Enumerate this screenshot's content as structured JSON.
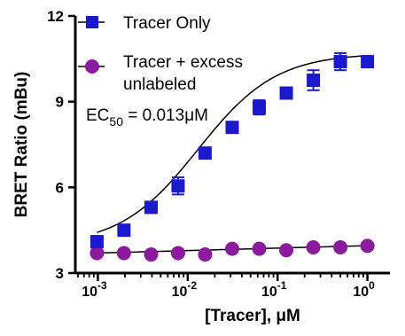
{
  "chart_data": {
    "type": "scatter",
    "ylabel": "BRET Ratio (mBu)",
    "xlabel_prefix": "[Tracer], ",
    "xlabel_unit": "μM",
    "x_scale": "log",
    "xlim": [
      0.000561,
      1.78
    ],
    "ylim": [
      3,
      12
    ],
    "y_ticks": [
      3,
      6,
      9,
      12
    ],
    "x_ticks": [
      {
        "value": 0.001,
        "base": "10",
        "exp": "-3"
      },
      {
        "value": 0.01,
        "base": "10",
        "exp": "-2"
      },
      {
        "value": 0.1,
        "base": "10",
        "exp": "-1"
      },
      {
        "value": 1,
        "base": "10",
        "exp": "0"
      }
    ],
    "x": [
      0.000977,
      0.00195,
      0.00391,
      0.00781,
      0.0156,
      0.03125,
      0.0625,
      0.125,
      0.25,
      0.5,
      1.0
    ],
    "series": [
      {
        "name": "Tracer Only",
        "marker": "square",
        "color": "#1a1acc",
        "values": [
          4.1,
          4.5,
          5.3,
          6.05,
          7.2,
          8.1,
          8.8,
          9.3,
          9.75,
          10.4,
          10.4
        ],
        "errors": [
          0.15,
          0.1,
          0.1,
          0.3,
          0.15,
          0.1,
          0.25,
          0.15,
          0.35,
          0.3,
          0.15
        ],
        "fit": {
          "bottom": 3.95,
          "top": 10.7,
          "logEC50": -1.886,
          "hill": 1.0
        }
      },
      {
        "name_lines": [
          "Tracer + excess",
          "unlabeled"
        ],
        "marker": "circle",
        "color": "#8b1a9e",
        "values": [
          3.7,
          3.7,
          3.65,
          3.7,
          3.65,
          3.85,
          3.85,
          3.8,
          3.9,
          3.9,
          3.95
        ],
        "fit": {
          "slope": 0.0864,
          "intercept": 3.96
        }
      }
    ],
    "annotation": {
      "prefix": "EC",
      "subscript": "50",
      "suffix": " = 0.013",
      "unit": "μM"
    },
    "grid": false,
    "legend_position": "top-left"
  }
}
